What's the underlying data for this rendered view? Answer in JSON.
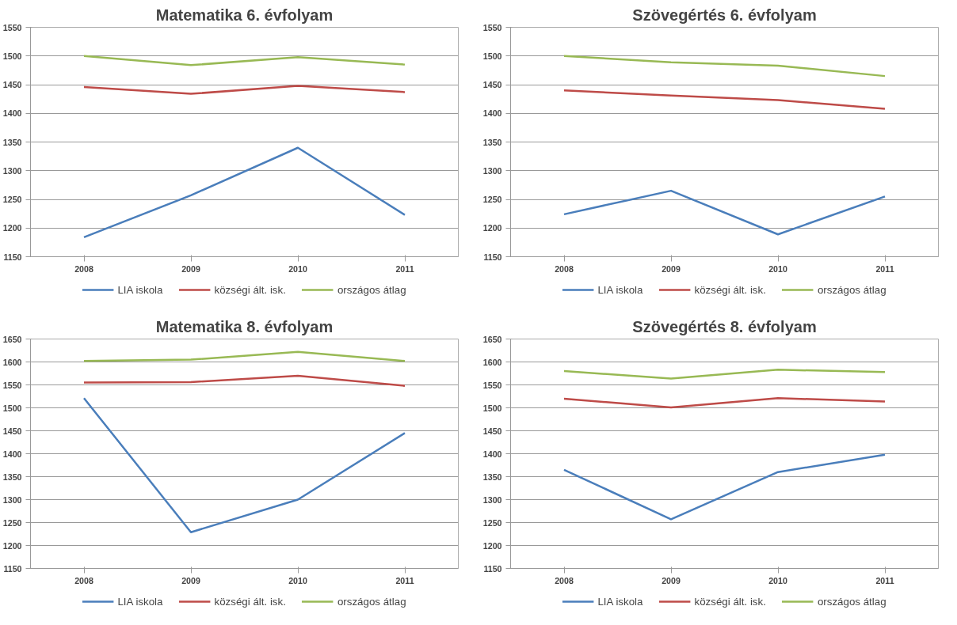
{
  "chart_data": [
    {
      "type": "line",
      "title": "Matematika 6. évfolyam",
      "categories": [
        "2008",
        "2009",
        "2010",
        "2011"
      ],
      "ylim": [
        1150,
        1550
      ],
      "yticks": [
        1150,
        1200,
        1250,
        1300,
        1350,
        1400,
        1450,
        1500,
        1550
      ],
      "grid": "y",
      "legend": "bottom",
      "series": [
        {
          "name": "LIA iskola",
          "color": "#4a7ebb",
          "values": [
            1184,
            1257,
            1340,
            1223
          ]
        },
        {
          "name": "községi ált. isk.",
          "color": "#be4b48",
          "values": [
            1446,
            1434,
            1448,
            1437
          ]
        },
        {
          "name": "országos átlag",
          "color": "#98b954",
          "values": [
            1500,
            1484,
            1498,
            1485
          ]
        }
      ]
    },
    {
      "type": "line",
      "title": "Szövegértés 6. évfolyam",
      "categories": [
        "2008",
        "2009",
        "2010",
        "2011"
      ],
      "ylim": [
        1150,
        1550
      ],
      "yticks": [
        1150,
        1200,
        1250,
        1300,
        1350,
        1400,
        1450,
        1500,
        1550
      ],
      "grid": "y",
      "legend": "bottom",
      "series": [
        {
          "name": "LIA iskola",
          "color": "#4a7ebb",
          "values": [
            1224,
            1265,
            1189,
            1255
          ]
        },
        {
          "name": "községi ált. isk.",
          "color": "#be4b48",
          "values": [
            1440,
            1431,
            1423,
            1408
          ]
        },
        {
          "name": "országos átlag",
          "color": "#98b954",
          "values": [
            1500,
            1489,
            1483,
            1465
          ]
        }
      ]
    },
    {
      "type": "line",
      "title": "Matematika 8. évfolyam",
      "categories": [
        "2008",
        "2009",
        "2010",
        "2011"
      ],
      "ylim": [
        1150,
        1650
      ],
      "yticks": [
        1150,
        1200,
        1250,
        1300,
        1350,
        1400,
        1450,
        1500,
        1550,
        1600,
        1650
      ],
      "grid": "y",
      "legend": "bottom",
      "series": [
        {
          "name": "LIA iskola",
          "color": "#4a7ebb",
          "values": [
            1521,
            1229,
            1300,
            1445
          ]
        },
        {
          "name": "községi ált. isk.",
          "color": "#be4b48",
          "values": [
            1555,
            1556,
            1570,
            1548
          ]
        },
        {
          "name": "országos átlag",
          "color": "#98b954",
          "values": [
            1602,
            1605,
            1622,
            1602
          ]
        }
      ]
    },
    {
      "type": "line",
      "title": "Szövegértés 8. évfolyam",
      "categories": [
        "2008",
        "2009",
        "2010",
        "2011"
      ],
      "ylim": [
        1150,
        1650
      ],
      "yticks": [
        1150,
        1200,
        1250,
        1300,
        1350,
        1400,
        1450,
        1500,
        1550,
        1600,
        1650
      ],
      "grid": "y",
      "legend": "bottom",
      "series": [
        {
          "name": "LIA iskola",
          "color": "#4a7ebb",
          "values": [
            1365,
            1257,
            1360,
            1398
          ]
        },
        {
          "name": "községi ált. isk.",
          "color": "#be4b48",
          "values": [
            1520,
            1501,
            1521,
            1514
          ]
        },
        {
          "name": "országos átlag",
          "color": "#98b954",
          "values": [
            1580,
            1564,
            1583,
            1578
          ]
        }
      ]
    }
  ]
}
